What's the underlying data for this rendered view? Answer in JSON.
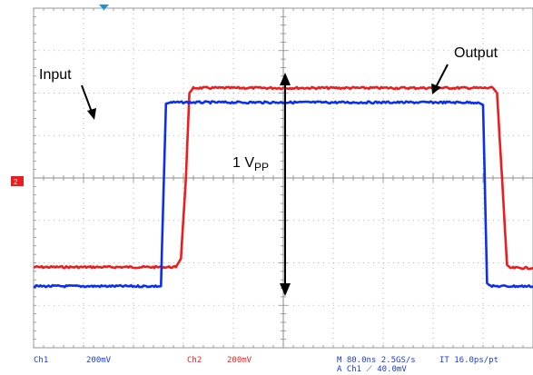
{
  "chart_data": {
    "type": "line",
    "title": "",
    "xlabel": "",
    "ylabel": "",
    "grid": true,
    "x_divisions": 10,
    "y_divisions": 8,
    "series": [
      {
        "name": "Input",
        "color": "#0a2ff0",
        "points": [
          [
            0,
            -2.55
          ],
          [
            2.55,
            -2.55
          ],
          [
            2.65,
            1.75
          ],
          [
            2.75,
            1.78
          ],
          [
            8.9,
            1.78
          ],
          [
            9.0,
            1.72
          ],
          [
            9.08,
            -2.48
          ],
          [
            9.15,
            -2.55
          ],
          [
            10,
            -2.55
          ]
        ]
      },
      {
        "name": "Output",
        "color": "#ee1c1c",
        "points": [
          [
            0,
            -2.1
          ],
          [
            2.85,
            -2.1
          ],
          [
            2.95,
            -1.9
          ],
          [
            3.05,
            0
          ],
          [
            3.12,
            2.0
          ],
          [
            3.2,
            2.12
          ],
          [
            10,
            2.12
          ]
        ]
      }
    ],
    "output_fall": [
      [
        9.2,
        2.12
      ],
      [
        9.28,
        2.0
      ],
      [
        9.38,
        0
      ],
      [
        9.48,
        -2.05
      ],
      [
        9.55,
        -2.12
      ],
      [
        10,
        -2.12
      ]
    ],
    "annotations": {
      "input": "Input",
      "output": "Output",
      "amplitude_main": "1 V",
      "amplitude_sub": "PP"
    }
  },
  "ground_marker": "2",
  "status": {
    "ch1": "Ch1",
    "ch1_scale": "200mV",
    "ch2": "Ch2",
    "ch2_scale": "200mV",
    "horizontal": "M 80.0ns 2.5GS/s",
    "trigger": "A  Ch1  ⟋  40.0mV",
    "interp": "IT 16.0ps/pt"
  }
}
